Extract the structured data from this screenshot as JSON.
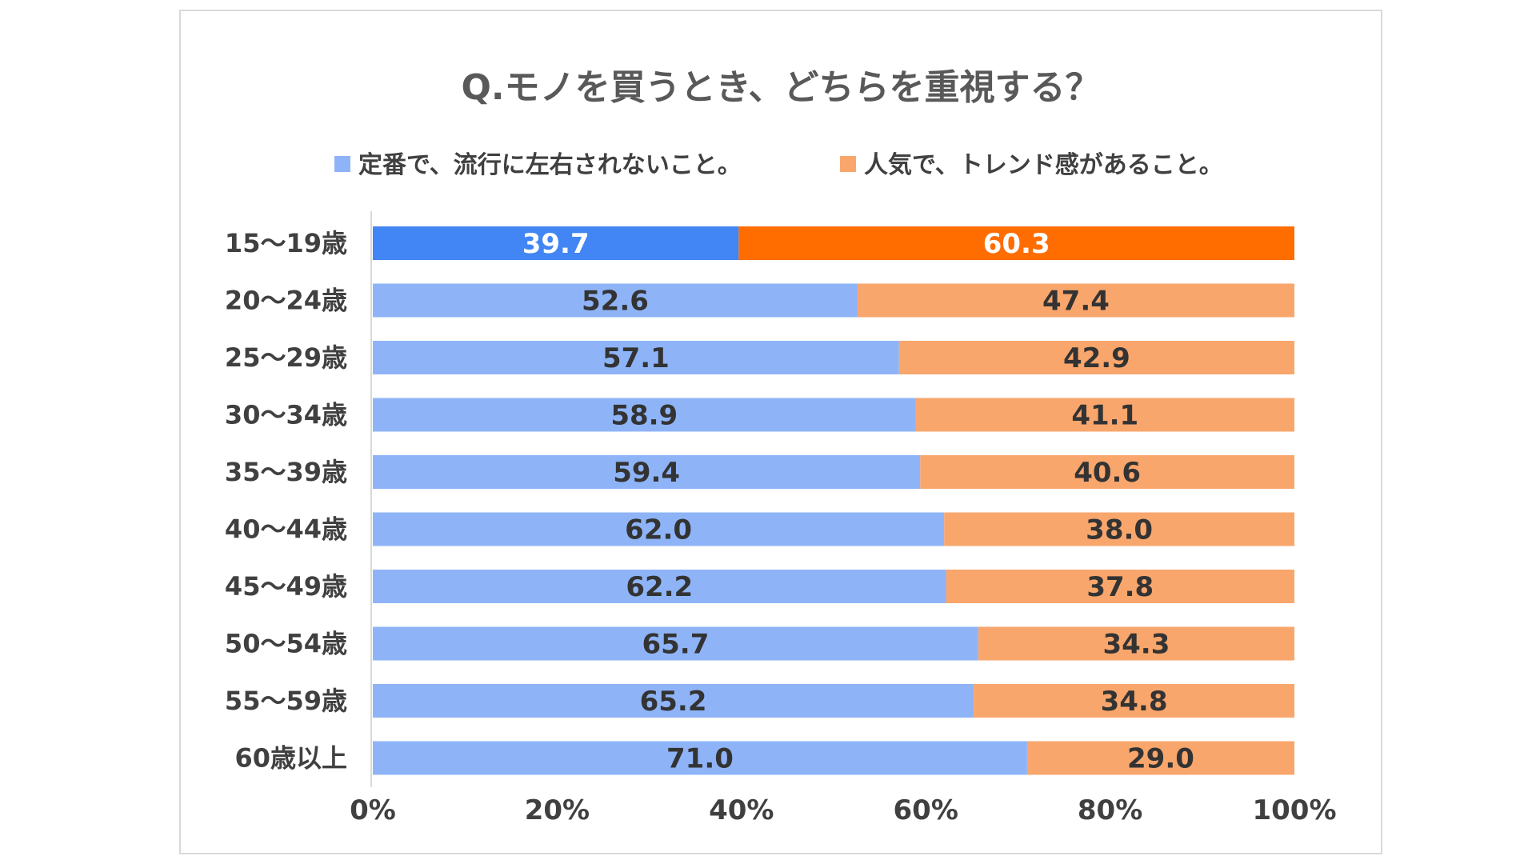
{
  "chart_data": {
    "type": "bar",
    "orientation": "horizontal",
    "stacked": "percent",
    "title": "Q.モノを買うとき、どちらを重視する？",
    "categories": [
      "15～19歳",
      "20～24歳",
      "25～29歳",
      "30～34歳",
      "35～39歳",
      "40～44歳",
      "45～49歳",
      "50～54歳",
      "55～59歳",
      "60歳以上"
    ],
    "series": [
      {
        "name": "定番で、流行に左右されないこと。",
        "values": [
          39.7,
          52.6,
          57.1,
          58.9,
          59.4,
          62.0,
          62.2,
          65.7,
          65.2,
          71.0
        ],
        "labels": [
          "39.7",
          "52.6",
          "57.1",
          "58.9",
          "59.4",
          "62.0",
          "62.2",
          "65.7",
          "65.2",
          "71.0"
        ],
        "color": "#8EB4F7",
        "highlight_color": "#4285F4"
      },
      {
        "name": "人気で、トレンド感があること。",
        "values": [
          60.3,
          47.4,
          42.9,
          41.1,
          40.6,
          38.0,
          37.8,
          34.3,
          34.8,
          29.0
        ],
        "labels": [
          "60.3",
          "47.4",
          "42.9",
          "41.1",
          "40.6",
          "38.0",
          "37.8",
          "34.3",
          "34.8",
          "29.0"
        ],
        "color": "#F9A66C",
        "highlight_color": "#FF6D01"
      }
    ],
    "highlight_category_index": 0,
    "xlim": [
      0,
      100
    ],
    "x_ticks": [
      "0%",
      "20%",
      "40%",
      "60%",
      "80%",
      "100%"
    ],
    "grid": false,
    "legend_position": "top"
  }
}
